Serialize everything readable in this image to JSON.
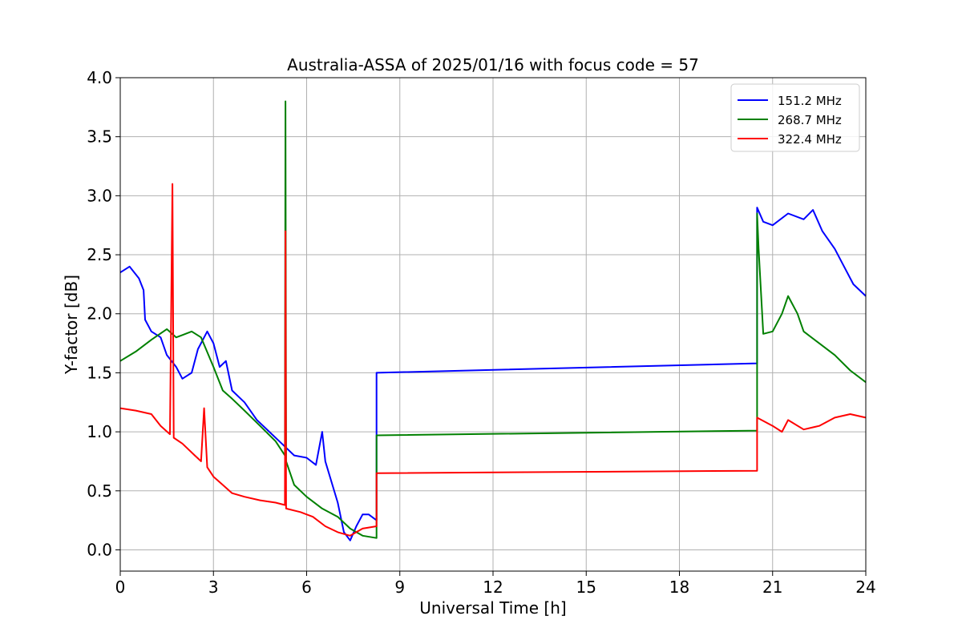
{
  "chart_data": {
    "type": "line",
    "title": "Australia-ASSA of 2025/01/16 with focus code = 57",
    "xlabel": "Universal Time [h]",
    "ylabel": "Y-factor [dB]",
    "xlim": [
      0,
      24
    ],
    "ylim": [
      -0.18,
      4.0
    ],
    "x_ticks": [
      0,
      3,
      6,
      9,
      12,
      15,
      18,
      21,
      24
    ],
    "x_tick_labels": [
      "0",
      "3",
      "6",
      "9",
      "12",
      "15",
      "18",
      "21",
      "24"
    ],
    "y_ticks": [
      0,
      0.5,
      1.0,
      1.5,
      2.0,
      2.5,
      3.0,
      3.5,
      4.0
    ],
    "y_tick_labels": [
      "0.0",
      "0.5",
      "1.0",
      "1.5",
      "2.0",
      "2.5",
      "3.0",
      "3.5",
      "4.0"
    ],
    "grid": true,
    "legend_position": "top-right",
    "series": [
      {
        "name": "151.2 MHz",
        "color": "#0000ff",
        "points": [
          [
            0.0,
            2.35
          ],
          [
            0.3,
            2.4
          ],
          [
            0.6,
            2.3
          ],
          [
            0.75,
            2.2
          ],
          [
            0.8,
            1.95
          ],
          [
            1.0,
            1.85
          ],
          [
            1.3,
            1.8
          ],
          [
            1.5,
            1.65
          ],
          [
            1.8,
            1.55
          ],
          [
            2.0,
            1.45
          ],
          [
            2.3,
            1.5
          ],
          [
            2.5,
            1.7
          ],
          [
            2.8,
            1.85
          ],
          [
            3.0,
            1.75
          ],
          [
            3.2,
            1.55
          ],
          [
            3.4,
            1.6
          ],
          [
            3.6,
            1.35
          ],
          [
            4.0,
            1.25
          ],
          [
            4.4,
            1.1
          ],
          [
            4.8,
            1.0
          ],
          [
            5.2,
            0.9
          ],
          [
            5.6,
            0.8
          ],
          [
            6.0,
            0.78
          ],
          [
            6.3,
            0.72
          ],
          [
            6.5,
            1.0
          ],
          [
            6.6,
            0.75
          ],
          [
            7.0,
            0.4
          ],
          [
            7.2,
            0.15
          ],
          [
            7.4,
            0.08
          ],
          [
            7.6,
            0.2
          ],
          [
            7.8,
            0.3
          ],
          [
            8.0,
            0.3
          ],
          [
            8.25,
            0.25
          ],
          [
            8.25,
            1.5
          ],
          [
            20.5,
            1.58
          ],
          [
            20.5,
            2.9
          ],
          [
            20.7,
            2.78
          ],
          [
            21.0,
            2.75
          ],
          [
            21.5,
            2.85
          ],
          [
            22.0,
            2.8
          ],
          [
            22.3,
            2.88
          ],
          [
            22.6,
            2.7
          ],
          [
            23.0,
            2.55
          ],
          [
            23.3,
            2.4
          ],
          [
            23.6,
            2.25
          ],
          [
            24.0,
            2.15
          ]
        ]
      },
      {
        "name": "268.7 MHz",
        "color": "#008000",
        "points": [
          [
            0.0,
            1.6
          ],
          [
            0.5,
            1.68
          ],
          [
            1.0,
            1.78
          ],
          [
            1.5,
            1.87
          ],
          [
            1.8,
            1.8
          ],
          [
            2.0,
            1.82
          ],
          [
            2.3,
            1.85
          ],
          [
            2.6,
            1.8
          ],
          [
            3.0,
            1.55
          ],
          [
            3.3,
            1.35
          ],
          [
            3.6,
            1.28
          ],
          [
            4.0,
            1.18
          ],
          [
            4.5,
            1.05
          ],
          [
            5.0,
            0.92
          ],
          [
            5.3,
            0.8
          ],
          [
            5.32,
            3.8
          ],
          [
            5.34,
            0.75
          ],
          [
            5.6,
            0.55
          ],
          [
            6.0,
            0.45
          ],
          [
            6.5,
            0.35
          ],
          [
            7.0,
            0.28
          ],
          [
            7.4,
            0.18
          ],
          [
            7.8,
            0.12
          ],
          [
            8.25,
            0.1
          ],
          [
            8.25,
            0.97
          ],
          [
            20.5,
            1.01
          ],
          [
            20.5,
            2.85
          ],
          [
            20.55,
            2.55
          ],
          [
            20.7,
            1.83
          ],
          [
            21.0,
            1.85
          ],
          [
            21.3,
            2.0
          ],
          [
            21.5,
            2.15
          ],
          [
            21.8,
            2.0
          ],
          [
            22.0,
            1.85
          ],
          [
            22.5,
            1.75
          ],
          [
            23.0,
            1.65
          ],
          [
            23.5,
            1.52
          ],
          [
            24.0,
            1.42
          ]
        ]
      },
      {
        "name": "322.4 MHz",
        "color": "#ff0000",
        "points": [
          [
            0.0,
            1.2
          ],
          [
            0.5,
            1.18
          ],
          [
            1.0,
            1.15
          ],
          [
            1.3,
            1.05
          ],
          [
            1.6,
            0.98
          ],
          [
            1.68,
            3.1
          ],
          [
            1.72,
            0.95
          ],
          [
            2.0,
            0.9
          ],
          [
            2.4,
            0.8
          ],
          [
            2.6,
            0.75
          ],
          [
            2.7,
            1.2
          ],
          [
            2.8,
            0.7
          ],
          [
            3.0,
            0.62
          ],
          [
            3.3,
            0.55
          ],
          [
            3.6,
            0.48
          ],
          [
            4.0,
            0.45
          ],
          [
            4.5,
            0.42
          ],
          [
            5.0,
            0.4
          ],
          [
            5.3,
            0.38
          ],
          [
            5.32,
            2.7
          ],
          [
            5.34,
            0.35
          ],
          [
            5.8,
            0.32
          ],
          [
            6.2,
            0.28
          ],
          [
            6.6,
            0.2
          ],
          [
            7.0,
            0.15
          ],
          [
            7.4,
            0.12
          ],
          [
            7.8,
            0.18
          ],
          [
            8.25,
            0.2
          ],
          [
            8.25,
            0.65
          ],
          [
            20.5,
            0.67
          ],
          [
            20.5,
            1.12
          ],
          [
            21.0,
            1.05
          ],
          [
            21.3,
            1.0
          ],
          [
            21.5,
            1.1
          ],
          [
            22.0,
            1.02
          ],
          [
            22.5,
            1.05
          ],
          [
            23.0,
            1.12
          ],
          [
            23.5,
            1.15
          ],
          [
            24.0,
            1.12
          ]
        ]
      }
    ]
  }
}
